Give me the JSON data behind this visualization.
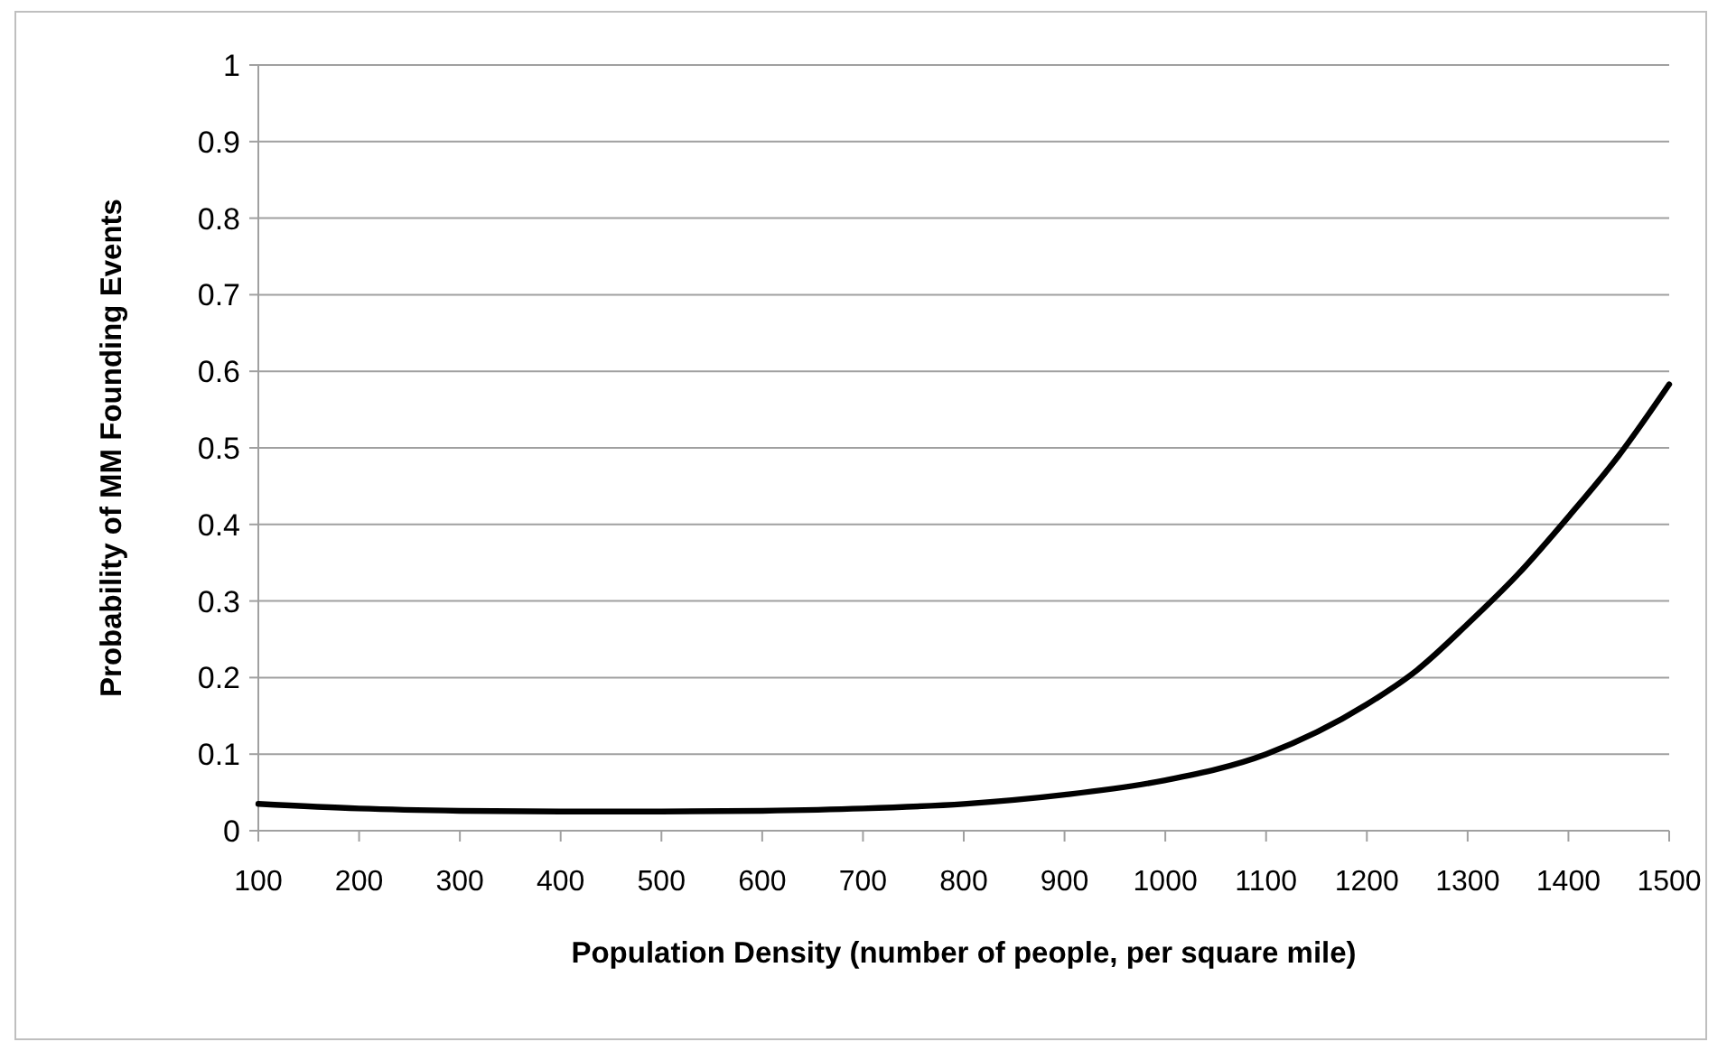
{
  "chart_data": {
    "type": "line",
    "xlabel": "Population Density (number of people, per square mile)",
    "ylabel": "Probability of MM Founding Events",
    "x": [
      100,
      200,
      300,
      400,
      500,
      600,
      700,
      800,
      900,
      1000,
      1100,
      1200,
      1250,
      1300,
      1350,
      1400,
      1450,
      1500
    ],
    "series": [
      {
        "color": "#000000",
        "values": [
          0.035,
          0.029,
          0.026,
          0.025,
          0.025,
          0.026,
          0.029,
          0.035,
          0.047,
          0.066,
          0.1,
          0.165,
          0.21,
          0.27,
          0.335,
          0.41,
          0.49,
          0.583
        ]
      }
    ],
    "xlim": [
      100,
      1500
    ],
    "xticks": [
      100,
      200,
      300,
      400,
      500,
      600,
      700,
      800,
      900,
      1000,
      1100,
      1200,
      1300,
      1400,
      1500
    ],
    "ylim": [
      0,
      1
    ],
    "yticks": [
      0,
      0.1,
      0.2,
      0.3,
      0.4,
      0.5,
      0.6,
      0.7,
      0.8,
      0.9,
      1
    ],
    "grid": "y",
    "marker": "none",
    "line_style": "solid"
  }
}
